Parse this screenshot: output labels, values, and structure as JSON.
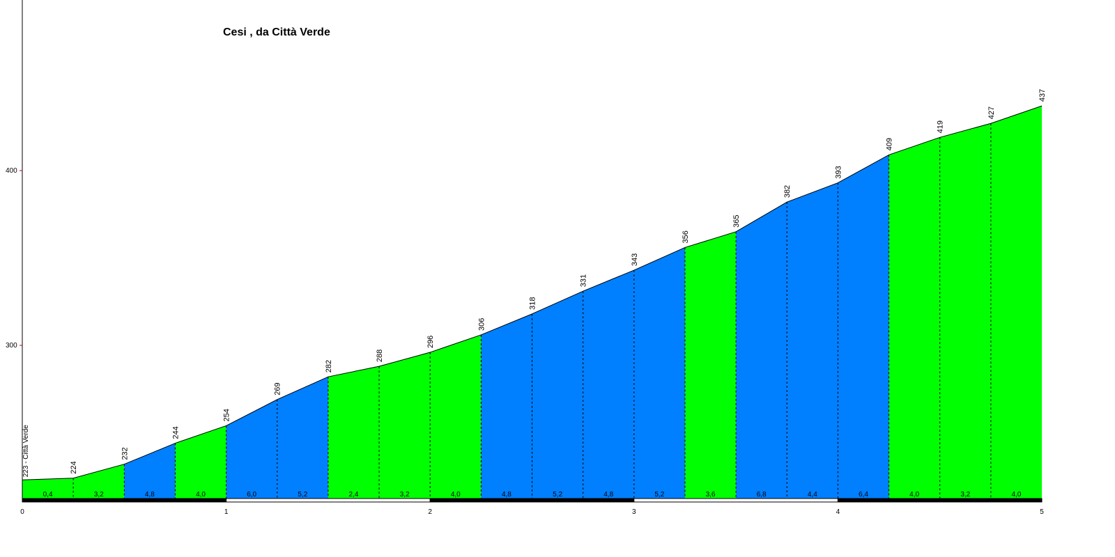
{
  "chart_data": {
    "type": "area",
    "title": "Cesi , da Città Verde",
    "xlabel": "",
    "ylabel": "",
    "xlim": [
      0,
      5
    ],
    "ylim": [
      212,
      500
    ],
    "x_ticks": [
      "0",
      "1",
      "2",
      "3",
      "4",
      "5"
    ],
    "y_ticks": [
      300,
      400
    ],
    "start_label": "223 - Città Verde",
    "x": [
      0,
      0.25,
      0.5,
      0.75,
      1.0,
      1.25,
      1.5,
      1.75,
      2.0,
      2.25,
      2.5,
      2.75,
      3.0,
      3.25,
      3.5,
      3.75,
      4.0,
      4.25,
      4.5,
      4.75,
      5.0
    ],
    "elevations": [
      223,
      224,
      232,
      244,
      254,
      269,
      282,
      288,
      296,
      306,
      318,
      331,
      343,
      356,
      365,
      382,
      393,
      409,
      419,
      427,
      437
    ],
    "point_labels": [
      "",
      "224",
      "232",
      "244",
      "254",
      "269",
      "282",
      "288",
      "296",
      "306",
      "318",
      "331",
      "343",
      "356",
      "365",
      "382",
      "393",
      "409",
      "419",
      "427",
      "437"
    ],
    "segment_gradients": [
      "0,4",
      "3,2",
      "4,8",
      "4,0",
      "6,0",
      "5,2",
      "2,4",
      "3,2",
      "4,0",
      "4,8",
      "5,2",
      "4,8",
      "5,2",
      "3,6",
      "6,8",
      "4,4",
      "6,4",
      "4,0",
      "3,2",
      "4,0"
    ],
    "segment_colors": [
      "#00ff00",
      "#00ff00",
      "#007fff",
      "#00ff00",
      "#007fff",
      "#007fff",
      "#00ff00",
      "#00ff00",
      "#00ff00",
      "#007fff",
      "#007fff",
      "#007fff",
      "#007fff",
      "#00ff00",
      "#007fff",
      "#007fff",
      "#007fff",
      "#00ff00",
      "#00ff00",
      "#00ff00"
    ],
    "grid": false
  }
}
